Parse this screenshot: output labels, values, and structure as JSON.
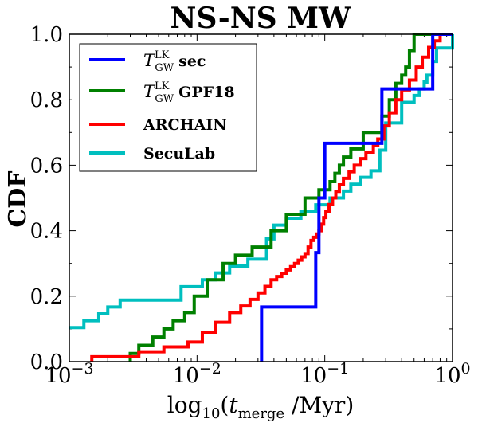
{
  "chart_data": {
    "type": "line",
    "step": true,
    "title": "NS-NS MW",
    "ylabel": "CDF",
    "xlabel": {
      "prefix": "log",
      "prefix_sub": "10",
      "open": "(",
      "var": "t",
      "var_sub": "merge",
      "unit": " /Myr)"
    },
    "xscale": "log",
    "xlim": [
      0.001,
      1.0
    ],
    "ylim": [
      0.0,
      1.0
    ],
    "x_ticks": [
      {
        "value": 0.001,
        "base": "10",
        "exp": "−3"
      },
      {
        "value": 0.01,
        "base": "10",
        "exp": "−2"
      },
      {
        "value": 0.1,
        "base": "10",
        "exp": "−1"
      },
      {
        "value": 1.0,
        "base": "10",
        "exp": "0"
      }
    ],
    "y_ticks": [
      {
        "value": 0.0,
        "label": "0.0"
      },
      {
        "value": 0.2,
        "label": "0.2"
      },
      {
        "value": 0.4,
        "label": "0.4"
      },
      {
        "value": 0.6,
        "label": "0.6"
      },
      {
        "value": 0.8,
        "label": "0.8"
      },
      {
        "value": 1.0,
        "label": "1.0"
      }
    ],
    "legend_position": "top-left",
    "series": [
      {
        "id": "sec",
        "name": "sec",
        "math_symbol": "T",
        "math_sup": "LK",
        "math_sub": "GW",
        "color": "#0000ff",
        "x": [
          0.032,
          0.032,
          0.085,
          0.09,
          0.1,
          0.28,
          0.7,
          1.0
        ],
        "y": [
          0.0,
          0.167,
          0.333,
          0.5,
          0.667,
          0.833,
          1.0,
          1.0
        ]
      },
      {
        "id": "gpf18",
        "name": "GPF18",
        "math_symbol": "T",
        "math_sup": "LK",
        "math_sub": "GW",
        "color": "#008000",
        "x": [
          0.003,
          0.003,
          0.0035,
          0.0045,
          0.0055,
          0.0065,
          0.008,
          0.0095,
          0.012,
          0.016,
          0.02,
          0.027,
          0.038,
          0.05,
          0.07,
          0.09,
          0.11,
          0.12,
          0.13,
          0.14,
          0.16,
          0.2,
          0.28,
          0.32,
          0.36,
          0.4,
          0.43,
          0.46,
          0.5,
          1.0
        ],
        "y": [
          0.0,
          0.025,
          0.05,
          0.075,
          0.1,
          0.125,
          0.15,
          0.2,
          0.25,
          0.3,
          0.325,
          0.35,
          0.4,
          0.45,
          0.5,
          0.525,
          0.55,
          0.575,
          0.6,
          0.625,
          0.65,
          0.7,
          0.75,
          0.8,
          0.85,
          0.875,
          0.9,
          0.95,
          1.0,
          1.0
        ]
      },
      {
        "id": "archain",
        "name": "ARCHAIN",
        "color": "#ff0000",
        "x": [
          0.0015,
          0.0015,
          0.0035,
          0.0055,
          0.0085,
          0.011,
          0.014,
          0.018,
          0.022,
          0.026,
          0.03,
          0.034,
          0.038,
          0.042,
          0.046,
          0.05,
          0.054,
          0.058,
          0.062,
          0.066,
          0.07,
          0.074,
          0.078,
          0.082,
          0.086,
          0.09,
          0.094,
          0.098,
          0.102,
          0.108,
          0.115,
          0.122,
          0.13,
          0.14,
          0.155,
          0.17,
          0.19,
          0.21,
          0.24,
          0.26,
          0.29,
          0.32,
          0.36,
          0.4,
          0.46,
          0.52,
          0.58,
          0.65,
          0.72,
          0.8,
          1.0
        ],
        "y": [
          0.0,
          0.015,
          0.03,
          0.045,
          0.06,
          0.09,
          0.12,
          0.15,
          0.17,
          0.19,
          0.21,
          0.23,
          0.25,
          0.26,
          0.27,
          0.28,
          0.29,
          0.3,
          0.31,
          0.32,
          0.33,
          0.35,
          0.37,
          0.38,
          0.39,
          0.4,
          0.42,
          0.44,
          0.46,
          0.48,
          0.5,
          0.52,
          0.54,
          0.56,
          0.58,
          0.6,
          0.62,
          0.64,
          0.66,
          0.68,
          0.72,
          0.76,
          0.8,
          0.83,
          0.86,
          0.9,
          0.93,
          0.96,
          0.98,
          1.0,
          1.0
        ]
      },
      {
        "id": "seculab",
        "name": "SecuLab",
        "color": "#00bfbf",
        "x": [
          0.001,
          0.0013,
          0.0017,
          0.002,
          0.0025,
          0.0075,
          0.011,
          0.014,
          0.018,
          0.025,
          0.035,
          0.04,
          0.05,
          0.065,
          0.085,
          0.11,
          0.14,
          0.16,
          0.19,
          0.23,
          0.27,
          0.3,
          0.4,
          0.5,
          0.55,
          0.6,
          0.63,
          0.7,
          0.75,
          1.0
        ],
        "y": [
          0.104,
          0.125,
          0.146,
          0.167,
          0.188,
          0.229,
          0.25,
          0.271,
          0.292,
          0.313,
          0.375,
          0.417,
          0.438,
          0.458,
          0.479,
          0.5,
          0.521,
          0.542,
          0.563,
          0.583,
          0.646,
          0.729,
          0.792,
          0.813,
          0.833,
          0.854,
          0.875,
          0.917,
          0.958,
          1.0
        ]
      }
    ]
  }
}
